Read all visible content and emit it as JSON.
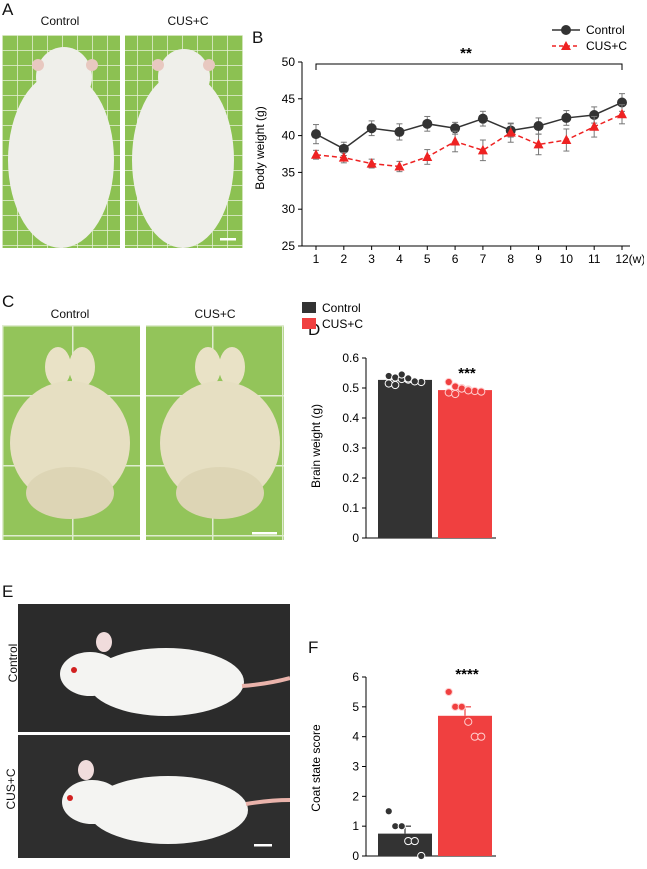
{
  "panels": {
    "A": {
      "letter": "A",
      "labels": [
        "Control",
        "CUS+C"
      ]
    },
    "B": {
      "letter": "B"
    },
    "C": {
      "letter": "C",
      "labels": [
        "Control",
        "CUS+C"
      ]
    },
    "D": {
      "letter": "D"
    },
    "E": {
      "letter": "E",
      "labels": [
        "Control",
        "CUS+C"
      ]
    },
    "F": {
      "letter": "F"
    }
  },
  "colors": {
    "control": "#333333",
    "cus": "#ee2222",
    "cus_bar": "#f04040",
    "grid_green": "#7fb84a"
  },
  "chart_data": [
    {
      "id": "B",
      "type": "line",
      "title": "",
      "xlabel": "(w)",
      "ylabel": "Body weight (g)",
      "x": [
        1,
        2,
        3,
        4,
        5,
        6,
        7,
        8,
        9,
        10,
        11,
        12
      ],
      "xlim": [
        1,
        12
      ],
      "ylim": [
        25,
        50
      ],
      "yticks": [
        25,
        30,
        35,
        40,
        45,
        50
      ],
      "legend": "top-right",
      "significance": "**",
      "series": [
        {
          "name": "Control",
          "values": [
            40.2,
            38.2,
            41.0,
            40.5,
            41.6,
            41.0,
            42.3,
            40.7,
            41.3,
            42.4,
            42.8,
            44.5
          ],
          "errors": [
            1.3,
            0.9,
            1.0,
            1.1,
            1.0,
            0.8,
            1.0,
            0.9,
            1.1,
            1.0,
            1.1,
            1.2
          ]
        },
        {
          "name": "CUS+C",
          "values": [
            37.4,
            37.0,
            36.2,
            35.8,
            37.1,
            39.2,
            38.0,
            40.4,
            38.8,
            39.4,
            41.2,
            42.9
          ],
          "errors": [
            0.6,
            0.7,
            0.6,
            0.7,
            1.0,
            1.4,
            1.4,
            1.3,
            1.4,
            1.5,
            1.4,
            1.3
          ]
        }
      ]
    },
    {
      "id": "D",
      "type": "bar",
      "title": "",
      "ylabel": "Brain weight (g)",
      "categories": [
        "Control",
        "CUS+C"
      ],
      "values": [
        0.527,
        0.493
      ],
      "errors": [
        0.007,
        0.006
      ],
      "ylim": [
        0,
        0.6
      ],
      "yticks": [
        0,
        0.1,
        0.2,
        0.3,
        0.4,
        0.5,
        0.6
      ],
      "legend": "top",
      "significance": "***",
      "points": [
        [
          0.54,
          0.535,
          0.53,
          0.528,
          0.525,
          0.52,
          0.515,
          0.51,
          0.545,
          0.532,
          0.522
        ],
        [
          0.52,
          0.505,
          0.5,
          0.495,
          0.49,
          0.488,
          0.485,
          0.48,
          0.498,
          0.492
        ]
      ]
    },
    {
      "id": "F",
      "type": "bar",
      "title": "",
      "ylabel": "Coat state score",
      "categories": [
        "Control",
        "CUS+C"
      ],
      "values": [
        0.75,
        4.7
      ],
      "errors": [
        0.25,
        0.3
      ],
      "ylim": [
        0,
        6
      ],
      "yticks": [
        0,
        1,
        2,
        3,
        4,
        5,
        6
      ],
      "significance": "****",
      "points": [
        [
          1.5,
          1.0,
          1.0,
          0.5,
          0.5,
          0.0
        ],
        [
          5.5,
          5.0,
          5.0,
          4.5,
          4.0,
          4.0
        ]
      ]
    }
  ]
}
